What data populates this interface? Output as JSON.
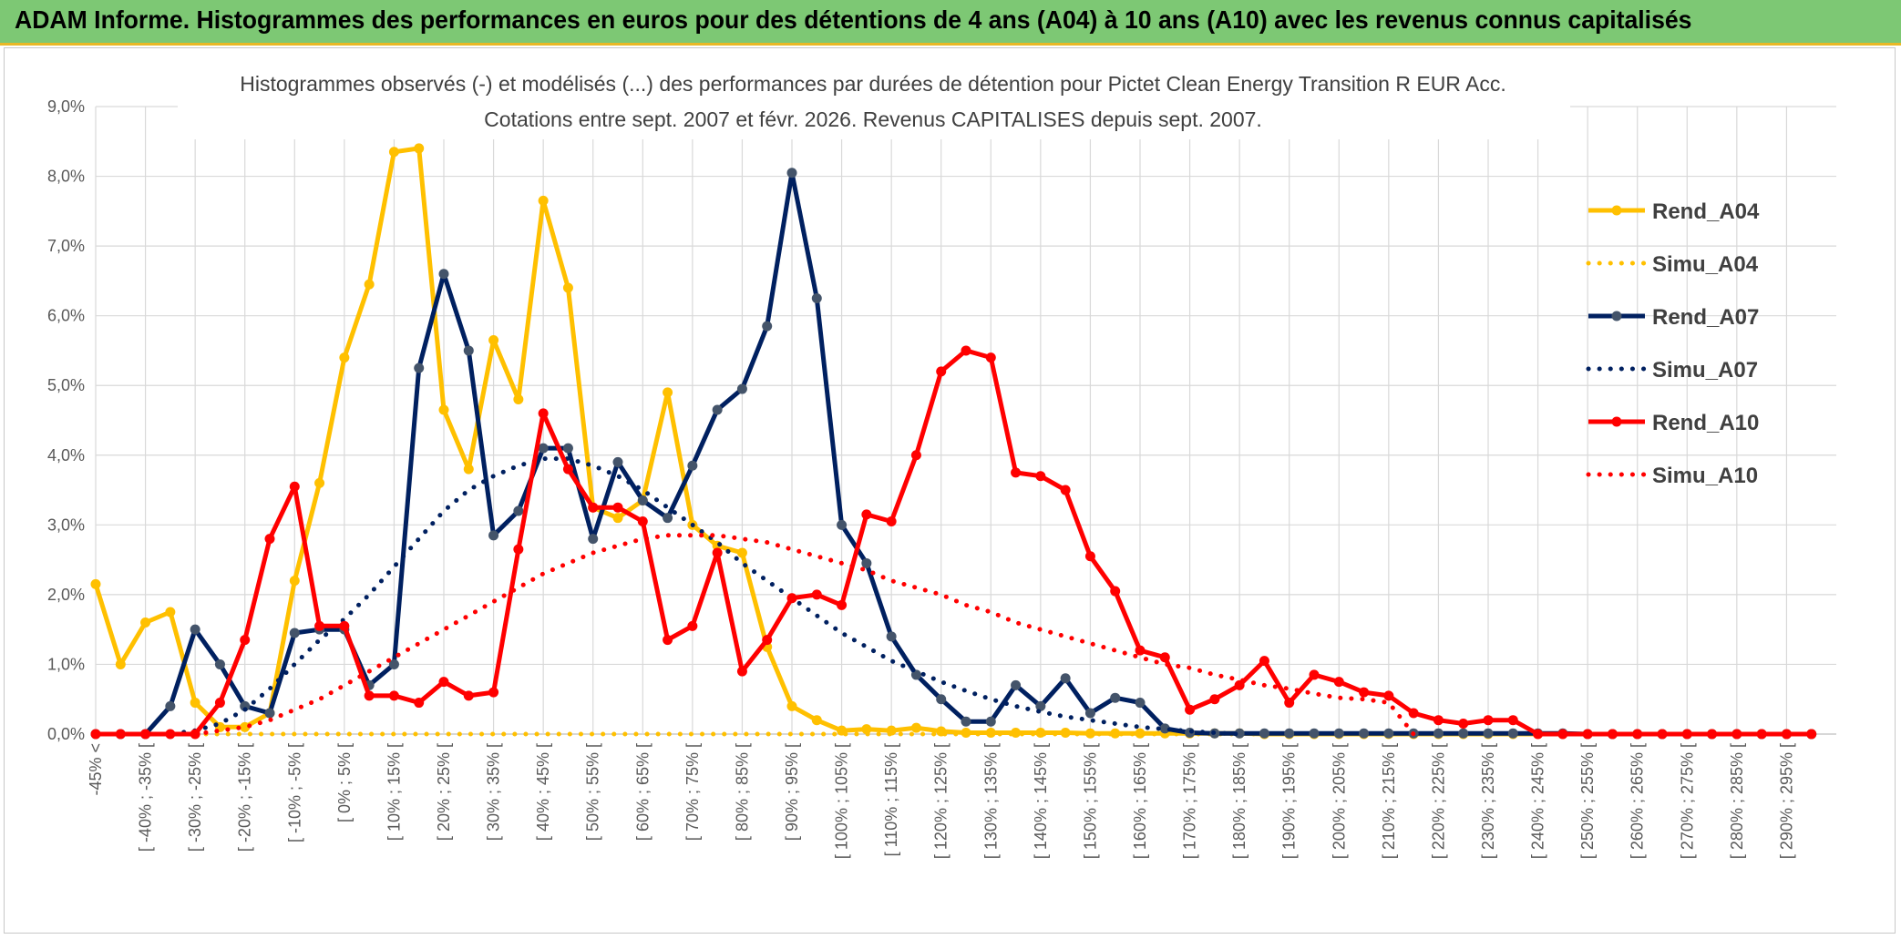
{
  "banner": {
    "title": "ADAM Informe. Histogrammes des performances en euros pour des détentions de 4 ans (A04) à 10 ans (A10) avec les revenus connus capitalisés"
  },
  "chart_data": {
    "type": "line",
    "title_line1": "Histogrammes observés (-) et modélisés (...) des performances par durées de détention pour Pictet Clean Energy Transition R EUR Acc.",
    "title_line2": "Cotations entre sept. 2007 et févr. 2026. Revenus CAPITALISES depuis sept. 2007.",
    "ylim": [
      0,
      9
    ],
    "ytick_labels": [
      "0,0%",
      "1,0%",
      "2,0%",
      "3,0%",
      "4,0%",
      "5,0%",
      "6,0%",
      "7,0%",
      "8,0%",
      "9,0%"
    ],
    "grid": true,
    "legend_position": "right",
    "x_labels": [
      "-45% <",
      "[ -40% ; -35% [",
      "[ -30% ; -25% [",
      "[ -20% ; -15% [",
      "[ -10% ; -5% [",
      "[ 0% ; 5% [",
      "[ 10% ; 15% [",
      "[ 20% ; 25% [",
      "[ 30% ; 35% [",
      "[ 40% ; 45% [",
      "[ 50% ; 55% [",
      "[ 60% ; 65% [",
      "[ 70% ; 75% [",
      "[ 80% ; 85% [",
      "[ 90% ; 95% [",
      "[ 100% ; 105% [",
      "[ 110% ; 115% [",
      "[ 120% ; 125% [",
      "[ 130% ; 135% [",
      "[ 140% ; 145% [",
      "[ 150% ; 155% [",
      "[ 160% ; 165% [",
      "[ 170% ; 175% [",
      "[ 180% ; 185% [",
      "[ 190% ; 195% [",
      "[ 200% ; 205% [",
      "[ 210% ; 215% [",
      "[ 220% ; 225% [",
      "[ 230% ; 235% [",
      "[ 240% ; 245% [",
      "[ 250% ; 255% [",
      "[ 260% ; 265% [",
      "[ 270% ; 275% [",
      "[ 280% ; 285% [",
      "[ 290% ; 295% ["
    ],
    "series": [
      {
        "name": "Rend_A04",
        "color": "#ffc000",
        "style": "solid",
        "values": [
          2.15,
          1.0,
          1.6,
          1.75,
          0.45,
          0.1,
          0.1,
          0.3,
          2.2,
          3.6,
          5.4,
          6.45,
          8.35,
          8.4,
          4.65,
          3.8,
          5.65,
          4.8,
          7.65,
          6.4,
          3.25,
          3.1,
          3.35,
          4.9,
          3.0,
          2.7,
          2.6,
          1.25,
          0.4,
          0.2,
          0.05,
          0.07,
          0.05,
          0.09,
          0.04,
          0.02,
          0.02,
          0.02,
          0.02,
          0.02,
          0.01,
          0.01,
          0.01,
          0.01,
          0.01,
          0.01,
          0.01,
          0.0,
          0.0,
          0.0,
          0.0,
          0.0,
          0.0,
          0.0,
          0.0,
          0.0,
          0.0,
          0.0,
          0.0,
          0.0,
          0.0,
          0.0,
          0.0,
          0.0,
          0.0,
          0.0,
          0.0,
          0.0,
          0.0,
          0.0
        ]
      },
      {
        "name": "Simu_A04",
        "color": "#ffc000",
        "style": "dotted",
        "values": [
          0.0,
          0.0,
          0.0,
          0.0,
          0.0,
          0.0,
          0.0,
          0.0,
          0.0,
          0.0,
          0.0,
          0.0,
          0.0,
          0.0,
          0.0,
          0.0,
          0.0,
          0.0,
          0.0,
          0.0,
          0.0,
          0.0,
          0.0,
          0.0,
          0.0,
          0.0,
          0.0,
          0.0,
          0.0,
          0.0,
          0.0,
          0.0,
          0.0,
          0.0,
          0.0,
          0.0,
          0.0,
          0.0,
          0.0,
          0.0,
          0.0,
          0.0,
          0.0,
          0.0,
          0.0,
          0.0,
          0.0,
          0.0
        ]
      },
      {
        "name": "Rend_A07",
        "color": "#002060",
        "style": "solid",
        "values": [
          0.0,
          0.0,
          0.0,
          0.4,
          1.5,
          1.0,
          0.4,
          0.3,
          1.45,
          1.5,
          1.5,
          0.7,
          1.0,
          5.25,
          6.6,
          5.5,
          2.85,
          3.2,
          4.1,
          4.1,
          2.8,
          3.9,
          3.35,
          3.1,
          3.85,
          4.65,
          4.95,
          5.85,
          8.05,
          6.25,
          3.0,
          2.45,
          1.4,
          0.85,
          0.5,
          0.18,
          0.18,
          0.7,
          0.4,
          0.8,
          0.3,
          0.52,
          0.45,
          0.08,
          0.02,
          0.01,
          0.01,
          0.01,
          0.01,
          0.01,
          0.01,
          0.01,
          0.01,
          0.01,
          0.01,
          0.01,
          0.01,
          0.01,
          0.01,
          0.01,
          0.0,
          0.0,
          0.0,
          0.0,
          0.0,
          0.0,
          0.0,
          0.0,
          0.0,
          0.0
        ]
      },
      {
        "name": "Simu_A07",
        "color": "#002060",
        "style": "dotted",
        "values": [
          0.0,
          0.0,
          0.0,
          0.0,
          0.05,
          0.15,
          0.35,
          0.65,
          1.0,
          1.35,
          1.65,
          2.0,
          2.4,
          2.8,
          3.2,
          3.5,
          3.7,
          3.85,
          3.95,
          3.95,
          3.85,
          3.7,
          3.5,
          3.25,
          3.0,
          2.75,
          2.45,
          2.2,
          1.95,
          1.7,
          1.45,
          1.25,
          1.05,
          0.9,
          0.75,
          0.62,
          0.5,
          0.4,
          0.32,
          0.25,
          0.2,
          0.15,
          0.1,
          0.07,
          0.04,
          0.02,
          0.0
        ]
      },
      {
        "name": "Rend_A10",
        "color": "#ff0000",
        "style": "solid",
        "values": [
          0.0,
          0.0,
          0.0,
          0.0,
          0.0,
          0.45,
          1.35,
          2.8,
          3.55,
          1.55,
          1.55,
          0.55,
          0.55,
          0.45,
          0.75,
          0.55,
          0.6,
          2.65,
          4.6,
          3.8,
          3.25,
          3.25,
          3.05,
          1.35,
          1.55,
          2.6,
          0.9,
          1.35,
          1.95,
          2.0,
          1.85,
          3.15,
          3.05,
          4.0,
          5.2,
          5.5,
          5.4,
          3.75,
          3.7,
          3.5,
          2.55,
          2.05,
          1.2,
          1.1,
          0.35,
          0.5,
          0.7,
          1.05,
          0.45,
          0.85,
          0.75,
          0.6,
          0.55,
          0.3,
          0.2,
          0.15,
          0.2,
          0.2,
          0.0,
          0.0,
          0.0,
          0.0,
          0.0,
          0.0,
          0.0,
          0.0,
          0.0,
          0.0,
          0.0,
          0.0
        ]
      },
      {
        "name": "Simu_A10",
        "color": "#ff0000",
        "style": "dotted",
        "values": [
          0.0,
          0.0,
          0.0,
          0.0,
          0.0,
          0.05,
          0.1,
          0.2,
          0.35,
          0.5,
          0.7,
          0.9,
          1.1,
          1.3,
          1.5,
          1.7,
          1.9,
          2.1,
          2.3,
          2.45,
          2.6,
          2.7,
          2.8,
          2.85,
          2.85,
          2.85,
          2.8,
          2.75,
          2.65,
          2.55,
          2.45,
          2.35,
          2.2,
          2.1,
          2.0,
          1.85,
          1.75,
          1.6,
          1.5,
          1.4,
          1.3,
          1.2,
          1.1,
          1.0,
          0.95,
          0.85,
          0.78,
          0.7,
          0.65,
          0.58,
          0.52,
          0.5,
          0.45,
          0.0
        ]
      }
    ]
  }
}
